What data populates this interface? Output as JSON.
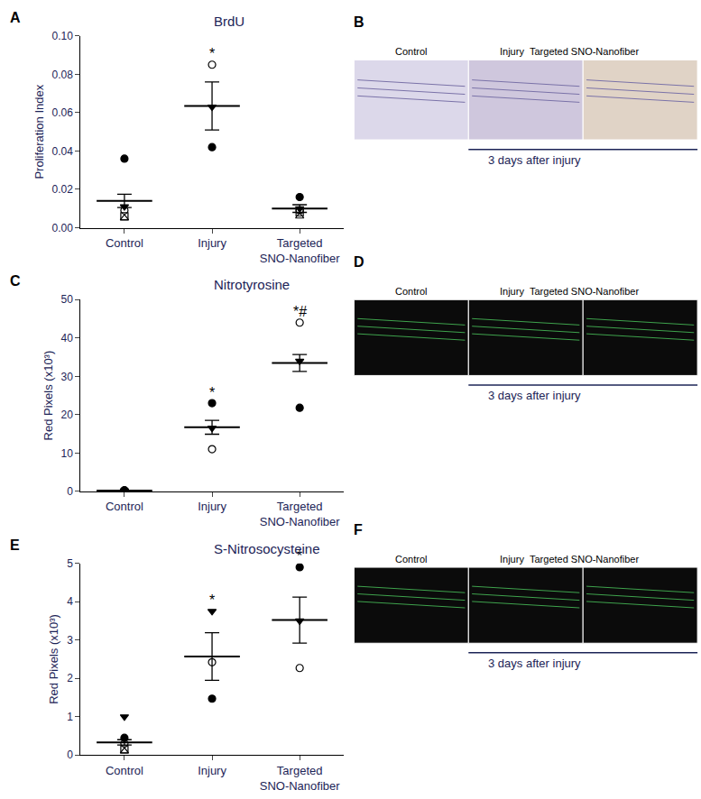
{
  "chart_data": [
    {
      "type": "scatter",
      "panel": "A",
      "title": "BrdU",
      "y_label": "Proliferation Index",
      "categories": [
        "Control",
        "Injury",
        "Targeted SNO-Nanofiber"
      ],
      "points": [
        [
          {
            "value": 0.036,
            "marker": "circle"
          },
          {
            "value": 0.011,
            "marker": "triangle-down"
          },
          {
            "value": 0.009,
            "marker": "circle-open"
          },
          {
            "value": 0.006,
            "marker": "square-open"
          },
          {
            "value": 0.005,
            "marker": "triangle-up-open"
          }
        ],
        [
          {
            "value": 0.085,
            "marker": "circle-open"
          },
          {
            "value": 0.063,
            "marker": "triangle-down"
          },
          {
            "value": 0.042,
            "marker": "circle"
          }
        ],
        [
          {
            "value": 0.016,
            "marker": "circle"
          },
          {
            "value": 0.01,
            "marker": "triangle-down"
          },
          {
            "value": 0.009,
            "marker": "circle-open"
          },
          {
            "value": 0.008,
            "marker": "square-open"
          },
          {
            "value": 0.006,
            "marker": "triangle-up-open"
          }
        ]
      ],
      "mean": [
        0.014,
        0.0635,
        0.01
      ],
      "sem": [
        0.0035,
        0.0125,
        0.002
      ],
      "significance": [
        null,
        "*",
        null
      ],
      "ylim": [
        0,
        0.1
      ],
      "yticks": [
        {
          "value": 0,
          "label": "0.00"
        },
        {
          "value": 0.02,
          "label": "0.02"
        },
        {
          "value": 0.04,
          "label": "0.04"
        },
        {
          "value": 0.06,
          "label": "0.06"
        },
        {
          "value": 0.08,
          "label": "0.08"
        },
        {
          "value": 0.1,
          "label": "0.10"
        }
      ],
      "grid": false
    },
    {
      "type": "scatter",
      "panel": "C",
      "title": "Nitrotyrosine",
      "y_label": "Red Pixels (x10³)",
      "categories": [
        "Control",
        "Injury",
        "Targeted SNO-Nanofiber"
      ],
      "points": [
        [
          {
            "value": 0.3,
            "marker": "circle"
          },
          {
            "value": 0.2,
            "marker": "triangle-down"
          },
          {
            "value": 0.2,
            "marker": "circle-open"
          }
        ],
        [
          {
            "value": 23,
            "marker": "circle"
          },
          {
            "value": 16.5,
            "marker": "triangle-down"
          },
          {
            "value": 11,
            "marker": "circle-open"
          }
        ],
        [
          {
            "value": 44,
            "marker": "circle-open"
          },
          {
            "value": 34,
            "marker": "triangle-down"
          },
          {
            "value": 21.8,
            "marker": "circle"
          }
        ]
      ],
      "mean": [
        0.2,
        16.7,
        33.5
      ],
      "sem": [
        0.1,
        1.8,
        2.2
      ],
      "significance": [
        null,
        "*",
        "*#"
      ],
      "ylim": [
        0,
        50
      ],
      "yticks": [
        0,
        10,
        20,
        30,
        40,
        50
      ],
      "grid": false
    },
    {
      "type": "scatter",
      "panel": "E",
      "title": "S-Nitrosocysteine",
      "y_label": "Red Pixels (x10³)",
      "categories": [
        "Control",
        "Injury",
        "Targeted SNO-Nanofiber"
      ],
      "points": [
        [
          {
            "value": 1.0,
            "marker": "triangle-down"
          },
          {
            "value": 0.45,
            "marker": "circle"
          },
          {
            "value": 0.3,
            "marker": "circle-open"
          },
          {
            "value": 0.15,
            "marker": "square-open"
          },
          {
            "value": 0.1,
            "marker": "triangle-up-open"
          }
        ],
        [
          {
            "value": 3.75,
            "marker": "triangle-down"
          },
          {
            "value": 2.42,
            "marker": "circle-open"
          },
          {
            "value": 1.47,
            "marker": "circle"
          }
        ],
        [
          {
            "value": 4.9,
            "marker": "circle"
          },
          {
            "value": 3.5,
            "marker": "triangle-down"
          },
          {
            "value": 2.27,
            "marker": "circle-open"
          }
        ]
      ],
      "mean": [
        0.33,
        2.57,
        3.52
      ],
      "sem": [
        0.07,
        0.62,
        0.6
      ],
      "significance": [
        null,
        "*",
        "*"
      ],
      "ylim": [
        0,
        5
      ],
      "yticks": [
        0,
        1,
        2,
        3,
        4,
        5
      ],
      "grid": false
    }
  ],
  "image_panels": [
    {
      "panel": "B",
      "labels": [
        "Control",
        "Injury",
        "Targeted SNO-Nanofiber"
      ],
      "caption": "3 days after injury"
    },
    {
      "panel": "D",
      "labels": [
        "Control",
        "Injury",
        "Targeted SNO-Nanofiber"
      ],
      "caption": "3 days after injury"
    },
    {
      "panel": "F",
      "labels": [
        "Control",
        "Injury",
        "Targeted SNO-Nanofiber"
      ],
      "caption": "3 days after injury"
    }
  ]
}
